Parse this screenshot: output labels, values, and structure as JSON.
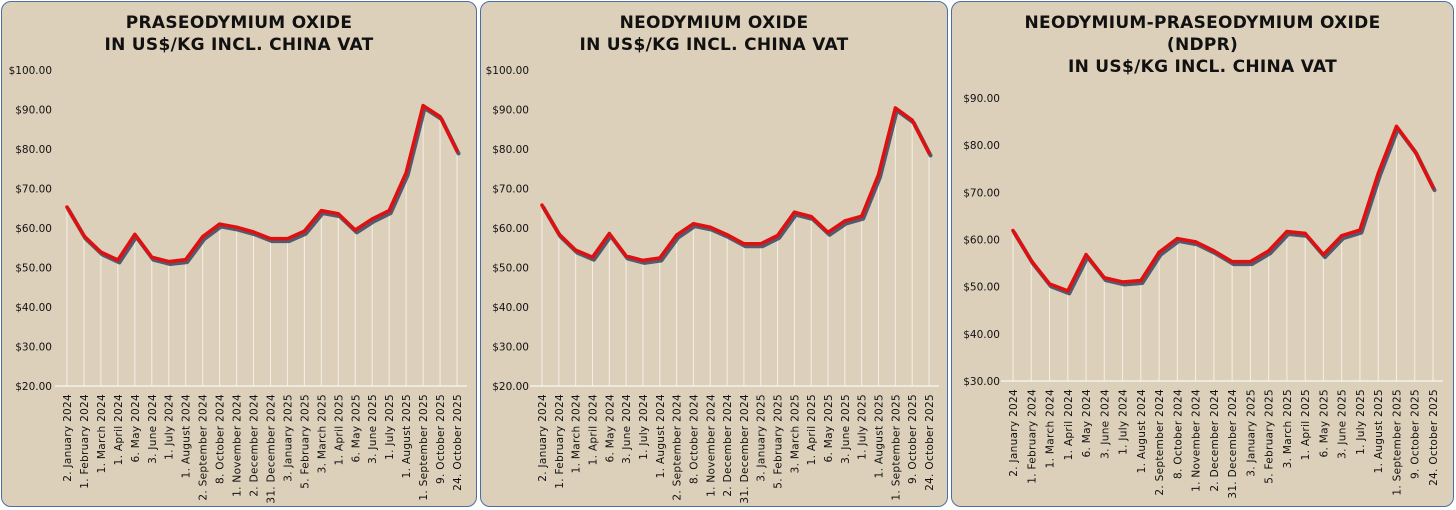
{
  "colors": {
    "panel_bg": "#ddd0bb",
    "panel_border": "#4a6fa5",
    "line": "#e01010",
    "shadow": "#3b4560",
    "droplines": "#f4efe6"
  },
  "chart_data": [
    {
      "type": "line",
      "title_lines": [
        "PRASEODYMIUM OXIDE",
        "IN US$/KG INCL. CHINA VAT"
      ],
      "categories": [
        "2. January 2024",
        "1. February 2024",
        "1. March 2024",
        "1. April 2024",
        "6. May 2024",
        "3. June 2024",
        "1. July 2024",
        "1. August 2024",
        "2. September 2024",
        "8. October 2024",
        "1. November 2024",
        "2. December 2024",
        "31. December 2024",
        "3. January 2025",
        "5. February 2025",
        "3. March 2025",
        "1. April 2025",
        "6. May 2025",
        "3. June 2025",
        "1. July 2025",
        "1. August 2025",
        "1. September 2025",
        "9. October 2025",
        "24. October 2025"
      ],
      "values": [
        65.3,
        58.0,
        53.9,
        51.9,
        58.4,
        52.6,
        51.5,
        52.0,
        57.8,
        61.0,
        60.2,
        59.0,
        57.3,
        57.3,
        59.2,
        64.4,
        63.6,
        59.5,
        62.3,
        64.4,
        74.0,
        91.0,
        88.2,
        79.5
      ],
      "yticks": [
        "$20.00",
        "$30.00",
        "$40.00",
        "$50.00",
        "$60.00",
        "$70.00",
        "$80.00",
        "$90.00",
        "$100.00"
      ],
      "ylim": [
        20,
        100
      ]
    },
    {
      "type": "line",
      "title_lines": [
        "NEODYMIUM OXIDE",
        "IN US$/KG INCL. CHINA VAT"
      ],
      "categories": [
        "2. January 2024",
        "1. February 2024",
        "1. March 2024",
        "1. April 2024",
        "6. May 2024",
        "3. June 2024",
        "1. July 2024",
        "1. August 2024",
        "2. September 2024",
        "8. October 2024",
        "1. November 2024",
        "2. December 2024",
        "31. December 2024",
        "3. January 2025",
        "5. February 2025",
        "3. March 2025",
        "1. April 2025",
        "6. May 2025",
        "3. June 2025",
        "1. July 2025",
        "1. August 2025",
        "1. September 2025",
        "9. October 2025",
        "24. October 2025"
      ],
      "values": [
        65.8,
        58.5,
        54.4,
        52.6,
        58.6,
        52.9,
        51.8,
        52.4,
        58.2,
        61.1,
        60.2,
        58.3,
        56.0,
        56.0,
        58.1,
        64.0,
        62.9,
        58.9,
        61.8,
        63.0,
        73.5,
        90.4,
        87.3,
        79.0
      ],
      "yticks": [
        "$20.00",
        "$30.00",
        "$40.00",
        "$50.00",
        "$60.00",
        "$70.00",
        "$80.00",
        "$90.00",
        "$100.00"
      ],
      "ylim": [
        20,
        100
      ]
    },
    {
      "type": "line",
      "title_lines": [
        "NEODYMIUM-PRASEODYMIUM OXIDE",
        "(NDPR)",
        "IN US$/KG INCL. CHINA VAT"
      ],
      "categories": [
        "2. January 2024",
        "1. February 2024",
        "1. March 2024",
        "1. April 2024",
        "6. May 2024",
        "3. June 2024",
        "1. July 2024",
        "1. August 2024",
        "2. September 2024",
        "8. October 2024",
        "1. November 2024",
        "2. December 2024",
        "31. December 2024",
        "3. January 2025",
        "5. February 2025",
        "3. March 2025",
        "1. April 2025",
        "6. May 2025",
        "3. June 2025",
        "1. July 2025",
        "1. August 2025",
        "1. September 2025",
        "9. October 2025",
        "24. October 2025"
      ],
      "values": [
        61.9,
        55.5,
        50.6,
        49.1,
        56.8,
        51.9,
        51.0,
        51.3,
        57.3,
        60.2,
        59.5,
        57.6,
        55.3,
        55.3,
        57.6,
        61.7,
        61.3,
        56.8,
        60.8,
        62.0,
        74.0,
        84.0,
        78.8,
        71.0
      ],
      "yticks": [
        "$30.00",
        "$40.00",
        "$50.00",
        "$60.00",
        "$70.00",
        "$80.00",
        "$90.00"
      ],
      "ylim": [
        30,
        90
      ]
    }
  ]
}
